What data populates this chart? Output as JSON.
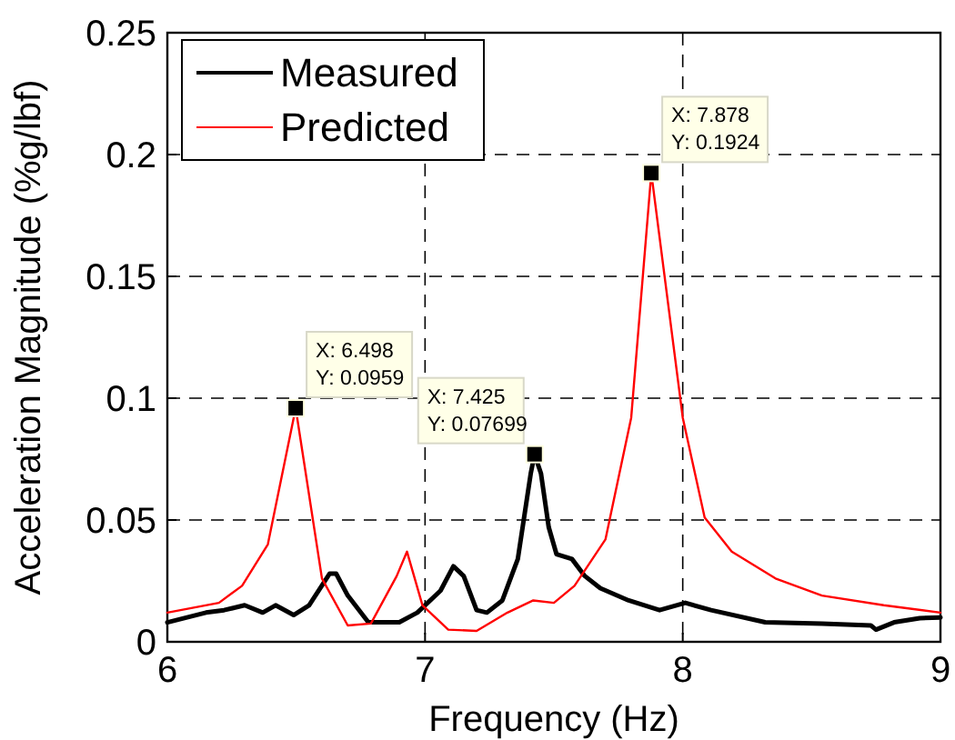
{
  "chart_data": {
    "type": "line",
    "xlabel": "Frequency (Hz)",
    "ylabel": "Acceleration Magnitude (%g/lbf)",
    "xlim": [
      6,
      9
    ],
    "xticks": [
      6,
      7,
      8,
      9
    ],
    "ylim": [
      0,
      0.25
    ],
    "yticks": [
      0,
      0.05,
      0.1,
      0.15,
      0.2,
      0.25
    ],
    "grid": true,
    "legend": "top left",
    "series": [
      {
        "name": "Measured",
        "color": "#000000",
        "x": [
          6.0,
          6.15,
          6.22,
          6.3,
          6.37,
          6.42,
          6.49,
          6.55,
          6.63,
          6.655,
          6.7,
          6.78,
          6.9,
          6.97,
          7.06,
          7.11,
          7.15,
          7.2,
          7.24,
          7.3,
          7.36,
          7.41,
          7.425,
          7.45,
          7.48,
          7.51,
          7.57,
          7.62,
          7.68,
          7.79,
          7.91,
          8.01,
          8.11,
          8.32,
          8.54,
          8.73,
          8.75,
          8.82,
          8.92,
          9.0
        ],
        "values": [
          0.008,
          0.012,
          0.013,
          0.015,
          0.012,
          0.015,
          0.011,
          0.015,
          0.028,
          0.028,
          0.019,
          0.008,
          0.008,
          0.012,
          0.021,
          0.031,
          0.027,
          0.013,
          0.012,
          0.017,
          0.034,
          0.069,
          0.077,
          0.069,
          0.047,
          0.036,
          0.034,
          0.027,
          0.022,
          0.017,
          0.013,
          0.016,
          0.013,
          0.008,
          0.0075,
          0.0067,
          0.005,
          0.008,
          0.0097,
          0.01
        ]
      },
      {
        "name": "Predicted",
        "color": "#ff0000",
        "x": [
          6.0,
          6.2,
          6.29,
          6.39,
          6.498,
          6.6,
          6.7,
          6.79,
          6.89,
          6.93,
          6.99,
          7.09,
          7.2,
          7.32,
          7.42,
          7.5,
          7.58,
          7.7,
          7.8,
          7.878,
          8.0,
          8.085,
          8.19,
          8.36,
          8.54,
          8.78,
          9.0
        ],
        "values": [
          0.012,
          0.016,
          0.023,
          0.04,
          0.0959,
          0.026,
          0.0067,
          0.0075,
          0.027,
          0.037,
          0.015,
          0.005,
          0.0045,
          0.012,
          0.017,
          0.016,
          0.023,
          0.042,
          0.092,
          0.1924,
          0.092,
          0.051,
          0.037,
          0.026,
          0.019,
          0.015,
          0.012
        ]
      }
    ],
    "annotations": [
      {
        "text": "X: 6.498\nY: 0.0959",
        "x": 6.498,
        "y": 0.0959
      },
      {
        "text": "X: 7.425\nY: 0.07699",
        "x": 7.425,
        "y": 0.07699
      },
      {
        "text": "X: 7.878\nY: 0.1924",
        "x": 7.878,
        "y": 0.1924
      }
    ]
  }
}
